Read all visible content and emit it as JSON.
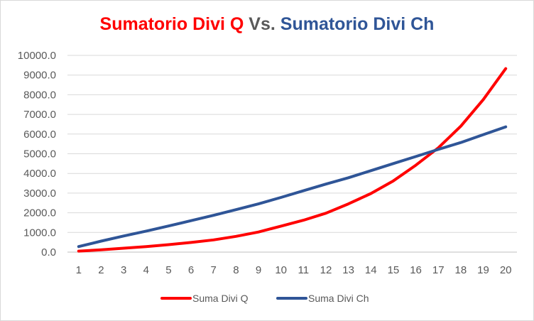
{
  "chart_data": {
    "type": "line",
    "title": {
      "part1": "Sumatorio Divi Q",
      "part2": " Vs. ",
      "part3": "Sumatorio Divi Ch"
    },
    "colors": {
      "series1": "#ff0000",
      "series2": "#2f5597",
      "title_mid": "#595959",
      "grid": "#d9d9d9",
      "axis": "#bfbfbf"
    },
    "x": [
      1,
      2,
      3,
      4,
      5,
      6,
      7,
      8,
      9,
      10,
      11,
      12,
      13,
      14,
      15,
      16,
      17,
      18,
      19,
      20
    ],
    "ylim": [
      0,
      10000
    ],
    "yticks": [
      "0.0",
      "1000.0",
      "2000.0",
      "3000.0",
      "4000.0",
      "5000.0",
      "6000.0",
      "7000.0",
      "8000.0",
      "9000.0",
      "10000.0"
    ],
    "grid": true,
    "legend": "bottom",
    "series": [
      {
        "name": "Suma Divi Q",
        "values": [
          50,
          120,
          200,
          280,
          380,
          490,
          620,
          800,
          1020,
          1320,
          1620,
          1980,
          2450,
          2980,
          3620,
          4420,
          5300,
          6400,
          7750,
          9330
        ]
      },
      {
        "name": "Suma Divi Ch",
        "values": [
          280,
          560,
          820,
          1070,
          1330,
          1600,
          1870,
          2160,
          2450,
          2780,
          3120,
          3460,
          3780,
          4140,
          4500,
          4860,
          5220,
          5570,
          5970,
          6370
        ]
      }
    ]
  }
}
